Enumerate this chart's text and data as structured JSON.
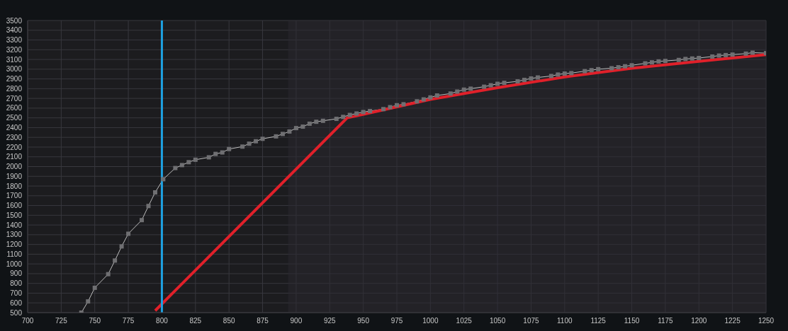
{
  "chart_data": {
    "type": "line",
    "xlim": [
      700,
      1250
    ],
    "ylim": [
      500,
      3500
    ],
    "xticks": [
      700,
      725,
      750,
      775,
      800,
      825,
      850,
      875,
      900,
      925,
      950,
      975,
      1000,
      1025,
      1050,
      1075,
      1100,
      1125,
      1150,
      1175,
      1200,
      1225,
      1250
    ],
    "yticks": [
      500,
      600,
      700,
      800,
      900,
      1000,
      1100,
      1200,
      1300,
      1400,
      1500,
      1600,
      1700,
      1800,
      1900,
      2000,
      2100,
      2200,
      2300,
      2400,
      2500,
      2600,
      2700,
      2800,
      2900,
      3000,
      3100,
      3200,
      3300,
      3400,
      3500
    ],
    "grid": true,
    "marker": "square",
    "series": [
      {
        "color": "#bdbdbd",
        "x": [
          740,
          745,
          750,
          760,
          765,
          770,
          775,
          785,
          790,
          795,
          801,
          810,
          815,
          820,
          825,
          835,
          840,
          845,
          850,
          860,
          865,
          870,
          875,
          885,
          890,
          895,
          900,
          905,
          910,
          915,
          920,
          930,
          935,
          940,
          945,
          950,
          955,
          965,
          970,
          975,
          980,
          990,
          995,
          1000,
          1005,
          1015,
          1020,
          1025,
          1030,
          1040,
          1045,
          1050,
          1055,
          1065,
          1070,
          1075,
          1080,
          1090,
          1095,
          1100,
          1105,
          1115,
          1120,
          1125,
          1135,
          1140,
          1145,
          1150,
          1160,
          1165,
          1170,
          1175,
          1185,
          1190,
          1195,
          1200,
          1210,
          1215,
          1220,
          1225,
          1235,
          1240,
          1250
        ],
        "values": [
          500,
          615,
          755,
          895,
          1035,
          1180,
          1310,
          1450,
          1595,
          1735,
          1870,
          1985,
          2015,
          2045,
          2070,
          2095,
          2130,
          2145,
          2180,
          2205,
          2235,
          2260,
          2285,
          2310,
          2335,
          2360,
          2395,
          2410,
          2440,
          2460,
          2470,
          2490,
          2510,
          2530,
          2545,
          2560,
          2570,
          2590,
          2610,
          2630,
          2640,
          2670,
          2690,
          2710,
          2730,
          2750,
          2770,
          2790,
          2800,
          2820,
          2835,
          2850,
          2860,
          2875,
          2890,
          2905,
          2915,
          2930,
          2945,
          2955,
          2960,
          2980,
          2990,
          3000,
          3010,
          3020,
          3030,
          3040,
          3060,
          3070,
          3080,
          3085,
          3095,
          3105,
          3110,
          3115,
          3130,
          3140,
          3145,
          3150,
          3160,
          3170,
          3165
        ]
      },
      {
        "color": "#e0202a",
        "marker": "none",
        "x": [
          795,
          938,
          1000,
          1050,
          1100,
          1150,
          1200,
          1250
        ],
        "values": [
          520,
          2500,
          2690,
          2810,
          2920,
          3010,
          3080,
          3150
        ]
      }
    ],
    "ref_lines": [
      {
        "axis": "x",
        "value": 800,
        "color": "#1ea0e0"
      }
    ],
    "bands": [
      {
        "axis": "x",
        "from": 894,
        "to": 1250,
        "color": "#2a2830"
      }
    ]
  }
}
